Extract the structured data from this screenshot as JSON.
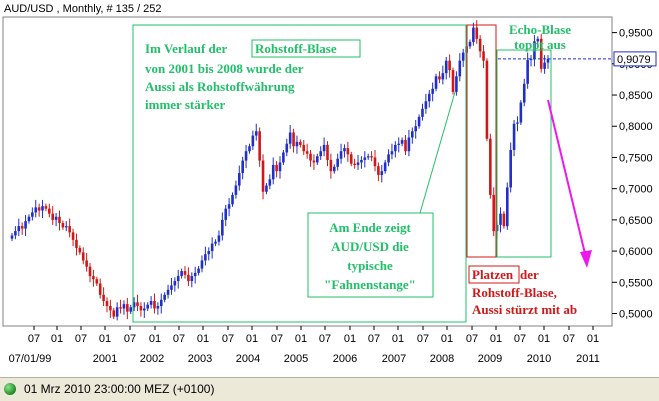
{
  "header": {
    "title": "AUD/USD , Monthly, # 135 / 252"
  },
  "status_bar": {
    "datetime_text": "01 Mrz 2010 23:00:00  MEZ (+0100)"
  },
  "chart_data": {
    "type": "candlestick",
    "title": "AUD/USD , Monthly, # 135 / 252",
    "ylim": [
      0.48,
      0.975
    ],
    "y_ticks": [
      "0,5000",
      "0,5500",
      "0,6000",
      "0,6500",
      "0,7000",
      "0,7500",
      "0,8000",
      "0,8500",
      "0,9000",
      "0,9500"
    ],
    "current_value": "0,9079",
    "x_tick_labels_top": [
      "07",
      "01",
      "07",
      "01",
      "07",
      "01",
      "07",
      "01",
      "07",
      "01",
      "07",
      "01",
      "07",
      "01",
      "07",
      "01",
      "07",
      "01",
      "07",
      "01",
      "07",
      "01",
      "07",
      "01"
    ],
    "x_tick_labels_bottom": [
      "07/01/99",
      "2001",
      "2002",
      "2003",
      "2004",
      "2005",
      "2006",
      "2007",
      "2008",
      "2009",
      "2010",
      "2011"
    ],
    "candles_close": [
      0.625,
      0.632,
      0.64,
      0.636,
      0.648,
      0.655,
      0.662,
      0.67,
      0.665,
      0.672,
      0.668,
      0.66,
      0.65,
      0.655,
      0.645,
      0.638,
      0.64,
      0.63,
      0.618,
      0.605,
      0.598,
      0.585,
      0.575,
      0.56,
      0.555,
      0.548,
      0.53,
      0.52,
      0.512,
      0.505,
      0.495,
      0.51,
      0.508,
      0.515,
      0.503,
      0.51,
      0.518,
      0.512,
      0.505,
      0.508,
      0.514,
      0.52,
      0.508,
      0.512,
      0.522,
      0.53,
      0.538,
      0.545,
      0.552,
      0.56,
      0.568,
      0.562,
      0.552,
      0.56,
      0.565,
      0.572,
      0.585,
      0.595,
      0.6,
      0.612,
      0.615,
      0.625,
      0.65,
      0.668,
      0.675,
      0.69,
      0.705,
      0.725,
      0.745,
      0.76,
      0.768,
      0.785,
      0.792,
      0.745,
      0.695,
      0.705,
      0.715,
      0.738,
      0.728,
      0.742,
      0.758,
      0.772,
      0.79,
      0.768,
      0.775,
      0.77,
      0.76,
      0.756,
      0.745,
      0.742,
      0.752,
      0.76,
      0.77,
      0.746,
      0.728,
      0.735,
      0.748,
      0.76,
      0.765,
      0.755,
      0.74,
      0.738,
      0.742,
      0.746,
      0.75,
      0.752,
      0.75,
      0.736,
      0.722,
      0.728,
      0.742,
      0.755,
      0.76,
      0.77,
      0.772,
      0.778,
      0.76,
      0.782,
      0.792,
      0.8,
      0.815,
      0.828,
      0.84,
      0.852,
      0.86,
      0.88,
      0.875,
      0.885,
      0.905,
      0.89,
      0.855,
      0.88,
      0.905,
      0.918,
      0.928,
      0.935,
      0.958,
      0.94,
      0.92,
      0.905,
      0.78,
      0.69,
      0.632,
      0.642,
      0.66,
      0.64,
      0.702,
      0.762,
      0.804,
      0.806,
      0.838,
      0.868,
      0.906,
      0.908,
      0.936,
      0.94,
      0.892,
      0.902,
      0.908
    ],
    "annotations": [
      {
        "text_before": "Im Verlauf der ",
        "boxed": "Rohstoff-Blase",
        "lines": [
          "von 2001 bis 2008 wurde der",
          "Aussi als Rohstoffwährung",
          "immer stärker"
        ],
        "color": "#22c06a"
      },
      {
        "lines": [
          "Am Ende zeigt",
          "AUD/USD die",
          "typische",
          "\"Fahnenstange\""
        ],
        "color": "#22c06a"
      },
      {
        "lines": [
          "Echo-Blase",
          "toppt aus"
        ],
        "color": "#22c06a"
      },
      {
        "boxed": "Platzen",
        "text_after": " der",
        "lines": [
          "Rohstoff-Blase,",
          "Aussi stürzt mit ab"
        ],
        "color": "#d01818"
      }
    ],
    "colors": {
      "up": "#1f2fc8",
      "down": "#d01818",
      "green_box": "#22c06a",
      "red_box": "#d01818",
      "arrow": "#ee18ee",
      "grid": "#c0c0c0"
    }
  }
}
